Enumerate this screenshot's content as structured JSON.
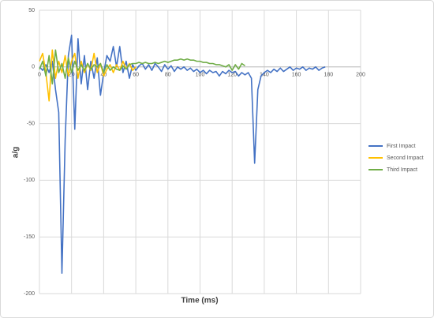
{
  "chart_data": {
    "type": "line",
    "x_label": "Time (ms)",
    "y_label": "a/g",
    "x": [
      0,
      2,
      4,
      6,
      8,
      10,
      12,
      14,
      16,
      18,
      20,
      22,
      24,
      26,
      28,
      30,
      32,
      34,
      36,
      38,
      40,
      42,
      44,
      46,
      48,
      50,
      52,
      54,
      56,
      58,
      60,
      62,
      64,
      66,
      68,
      70,
      72,
      74,
      76,
      78,
      80,
      82,
      84,
      86,
      88,
      90,
      92,
      94,
      96,
      98,
      100,
      102,
      104,
      106,
      108,
      110,
      112,
      114,
      116,
      118,
      120,
      122,
      124,
      126,
      128,
      130,
      132,
      134,
      136,
      138,
      140,
      142,
      144,
      146,
      148,
      150,
      152,
      154,
      156,
      158,
      160,
      162,
      164,
      166,
      168,
      170,
      172,
      174,
      176,
      178
    ],
    "series": [
      {
        "name": "First Impact",
        "color": "#4472c4",
        "values": [
          0,
          -3,
          2,
          -5,
          5,
          -20,
          -40,
          -182,
          -65,
          10,
          28,
          -55,
          25,
          -15,
          10,
          -20,
          5,
          -10,
          8,
          -25,
          -5,
          10,
          5,
          18,
          0,
          18,
          -5,
          5,
          -10,
          2,
          -3,
          1,
          3,
          -2,
          2,
          -3,
          3,
          0,
          -4,
          2,
          -2,
          1,
          -4,
          0,
          -2,
          0,
          -3,
          -1,
          -4,
          -2,
          -5,
          -3,
          -6,
          -3,
          -5,
          -4,
          -8,
          -4,
          -6,
          -3,
          -5,
          -4,
          -8,
          -5,
          -7,
          -5,
          -10,
          -85,
          -20,
          -8,
          -5,
          -3,
          -5,
          -2,
          -4,
          -1,
          -4,
          -2,
          0,
          -3,
          -1,
          -2,
          0,
          -3,
          -1,
          -2,
          0,
          -3,
          -1,
          0
        ]
      },
      {
        "name": "Second Impact",
        "color": "#ffc000",
        "values": [
          5,
          12,
          -5,
          -30,
          15,
          -10,
          5,
          -5,
          10,
          -8,
          5,
          12,
          -10,
          5,
          -5,
          3,
          -3,
          12,
          -5,
          3,
          -8,
          -2,
          2,
          -5,
          2,
          -3,
          5,
          -2,
          3,
          -3,
          0,
          null,
          null,
          null,
          null,
          null,
          null,
          null,
          null,
          null,
          null,
          null,
          null,
          null,
          null,
          null,
          null,
          null,
          null,
          null,
          null,
          null,
          null,
          null,
          null,
          null,
          null,
          null,
          null,
          null,
          null,
          null,
          null,
          null,
          null,
          null,
          null,
          null,
          null,
          null,
          null,
          null,
          null,
          null,
          null,
          null,
          null,
          null,
          null,
          null,
          null,
          null,
          null,
          null,
          null,
          null,
          null,
          null,
          null,
          null
        ]
      },
      {
        "name": "Third Impact",
        "color": "#70ad47",
        "values": [
          -2,
          5,
          -8,
          10,
          -15,
          15,
          -5,
          3,
          -10,
          8,
          -5,
          5,
          -3,
          2,
          -3,
          3,
          -2,
          2,
          0,
          3,
          -5,
          2,
          -3,
          0,
          -2,
          -3,
          1,
          -2,
          2,
          3,
          3,
          4,
          3,
          4,
          3,
          3,
          4,
          3,
          4,
          5,
          4,
          5,
          6,
          6,
          7,
          6,
          7,
          6,
          6,
          5,
          5,
          4,
          4,
          3,
          3,
          2,
          2,
          1,
          0,
          2,
          -3,
          2,
          -2,
          3,
          1,
          null,
          null,
          null,
          null,
          null,
          null,
          null,
          null,
          null,
          null,
          null,
          null,
          null,
          null,
          null,
          null,
          null,
          null,
          null,
          null,
          null,
          null,
          null,
          null,
          null
        ]
      }
    ],
    "xlim": [
      0,
      200
    ],
    "xticks": [
      0,
      20,
      40,
      60,
      80,
      100,
      120,
      140,
      160,
      180,
      200
    ],
    "ylim": [
      -200,
      50
    ],
    "yticks": [
      50,
      0,
      -50,
      -100,
      -150,
      -200
    ],
    "grid": true,
    "legend": "right"
  }
}
